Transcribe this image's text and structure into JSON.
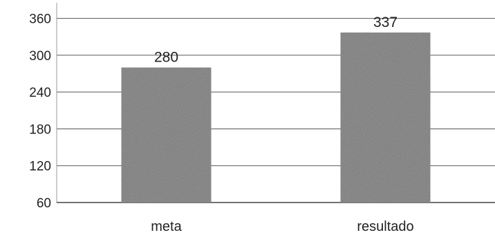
{
  "chart_data": {
    "type": "bar",
    "categories": [
      "meta",
      "resultado"
    ],
    "values": [
      280,
      337
    ],
    "data_labels": [
      "280",
      "337"
    ],
    "y_ticks": [
      60,
      120,
      180,
      240,
      300,
      360
    ],
    "y_tick_labels": [
      "60",
      "120",
      "180",
      "240",
      "300",
      "360"
    ],
    "ylim": [
      60,
      390
    ],
    "grid": true,
    "legend": "none",
    "bar_color": "#9a9a9a",
    "grid_color": "#555555"
  }
}
